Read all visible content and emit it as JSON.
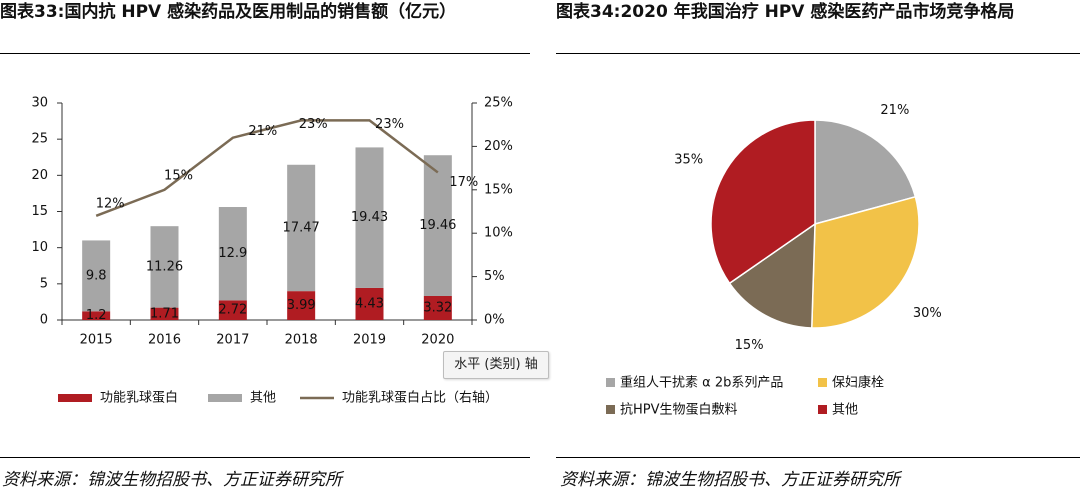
{
  "left_title": "图表33:国内抗 HPV 感染药品及医用制品的销售额（亿元）",
  "right_title": "图表34:2020 年我国治疗 HPV 感染医药产品市场竞争格局",
  "left_source": "资料来源：锦波生物招股书、方正证券研究所",
  "right_source": "资料来源：锦波生物招股书、方正证券研究所",
  "tooltip": "水平 (类别) 轴",
  "colors": {
    "red": "#b01c22",
    "gray": "#a6a6a6",
    "line": "#7b6b55",
    "yellow": "#f2c248",
    "brown": "#7b6b55"
  },
  "chart_data": [
    {
      "type": "bar",
      "subtype": "stacked-bar-with-line",
      "categories": [
        "2015",
        "2016",
        "2017",
        "2018",
        "2019",
        "2020"
      ],
      "series": [
        {
          "name": "功能乳球蛋白",
          "kind": "bar",
          "color": "#b01c22",
          "values": [
            1.2,
            1.71,
            2.72,
            3.99,
            4.43,
            3.32
          ],
          "labels": [
            "1.2",
            "1.71",
            "2.72",
            "3.99",
            "4.43",
            "3.32"
          ]
        },
        {
          "name": "其他",
          "kind": "bar",
          "color": "#a6a6a6",
          "values": [
            9.8,
            11.26,
            12.9,
            17.47,
            19.43,
            19.46
          ],
          "labels": [
            "9.8",
            "11.26",
            "12.9",
            "17.47",
            "19.43",
            "19.46"
          ]
        },
        {
          "name": "功能乳球蛋白占比（右轴）",
          "kind": "line",
          "axis": "right",
          "color": "#7b6b55",
          "values": [
            0.12,
            0.15,
            0.21,
            0.23,
            0.23,
            0.17
          ],
          "labels": [
            "12%",
            "15%",
            "21%",
            "23%",
            "23%",
            "17%"
          ]
        }
      ],
      "ylim": [
        0,
        30
      ],
      "yticks": [
        "0",
        "5",
        "10",
        "15",
        "20",
        "25",
        "30"
      ],
      "y2lim": [
        0,
        0.25
      ],
      "y2ticks": [
        "0%",
        "5%",
        "10%",
        "15%",
        "20%",
        "25%"
      ],
      "legend_position": "bottom",
      "grid": false
    },
    {
      "type": "pie",
      "slices": [
        {
          "name": "重组人干扰素 α 2b系列产品",
          "value": 21,
          "label": "21%",
          "color": "#a6a6a6"
        },
        {
          "name": "保妇康栓",
          "value": 30,
          "label": "30%",
          "color": "#f2c248"
        },
        {
          "name": "抗HPV生物蛋白敷料",
          "value": 15,
          "label": "15%",
          "color": "#7b6b55"
        },
        {
          "name": "其他",
          "value": 35,
          "label": "35%",
          "color": "#b01c22"
        }
      ],
      "legend_position": "bottom"
    }
  ]
}
